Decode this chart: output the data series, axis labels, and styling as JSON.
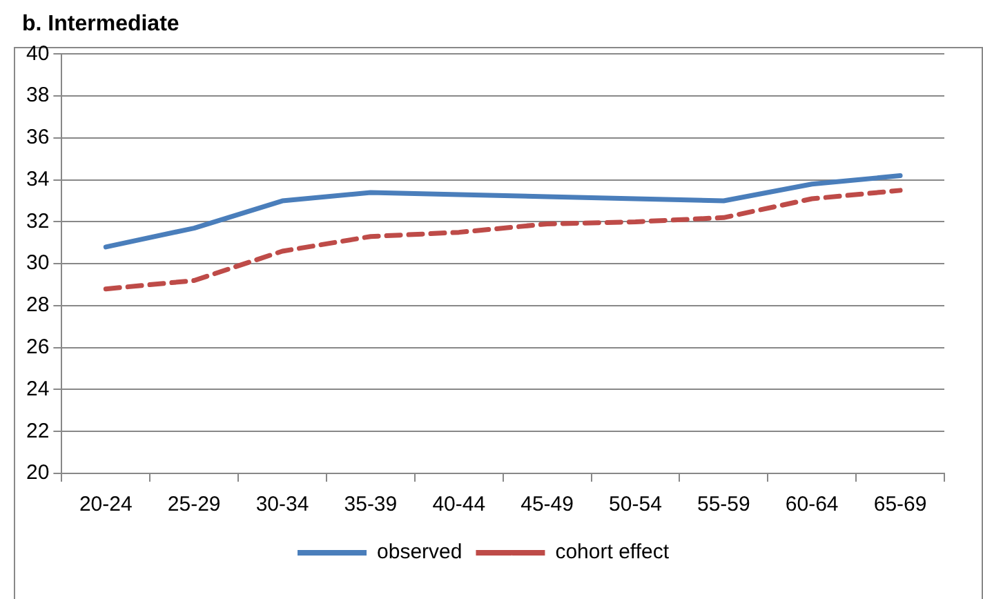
{
  "chart_data": {
    "type": "line",
    "title": "b. Intermediate",
    "categories": [
      "20-24",
      "25-29",
      "30-34",
      "35-39",
      "40-44",
      "45-49",
      "50-54",
      "55-59",
      "60-64",
      "65-69"
    ],
    "series": [
      {
        "name": "observed",
        "color": "#4a7ebb",
        "values": [
          30.8,
          31.7,
          33.0,
          33.4,
          33.3,
          33.2,
          33.1,
          33.0,
          33.8,
          34.2
        ]
      },
      {
        "name": "cohort effect",
        "color": "#be4b48",
        "line_style": "dashed",
        "values": [
          28.8,
          29.2,
          30.6,
          31.3,
          31.5,
          31.9,
          32.0,
          32.2,
          33.1,
          33.5
        ]
      }
    ],
    "ylim": [
      20,
      40
    ],
    "yticks": [
      20,
      22,
      24,
      26,
      28,
      30,
      32,
      34,
      36,
      38,
      40
    ],
    "grid": "y",
    "legend": "bottom",
    "marker": "none"
  }
}
